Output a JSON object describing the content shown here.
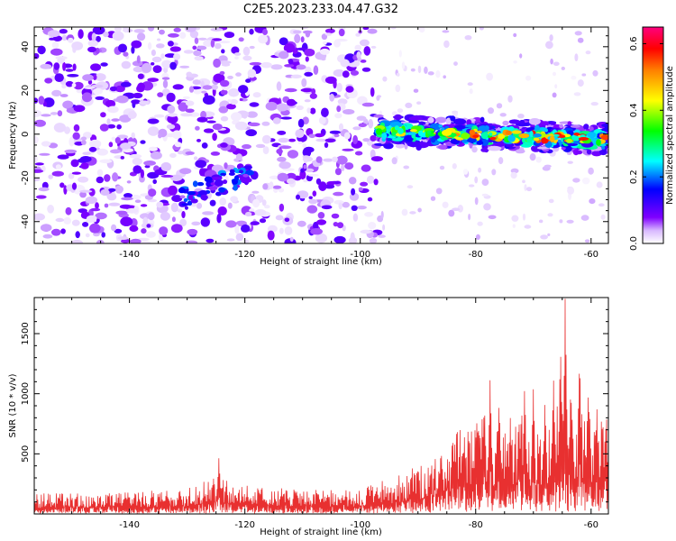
{
  "title": "C2E5.2023.233.04.47.G32",
  "chart_data": [
    {
      "type": "heatmap",
      "xlabel": "Height of straight line (km)",
      "ylabel": "Frequency (Hz)",
      "xlim": [
        -156.5,
        -57
      ],
      "ylim": [
        -50,
        49
      ],
      "xticks": [
        -140,
        -120,
        -100,
        -80,
        -60
      ],
      "yticks": [
        -40,
        -20,
        0,
        20,
        40
      ],
      "colorbar": {
        "label": "Normalized spectral amplitude",
        "range": [
          0,
          0.65
        ],
        "ticks": [
          0.0,
          0.2,
          0.4,
          0.6
        ],
        "stops": [
          "#ffffff",
          "#7f00ff",
          "#0000ff",
          "#00ffff",
          "#00ff00",
          "#ffff00",
          "#ff8000",
          "#ff0000",
          "#ff007f"
        ]
      },
      "features": [
        {
          "kind": "noise",
          "x_range": [
            -156.5,
            -97
          ],
          "y_range": [
            -50,
            49
          ],
          "max_amplitude": 0.1
        },
        {
          "kind": "tonal",
          "x_range": [
            -97,
            -57
          ],
          "freq_start": 1.5,
          "freq_end": -2.5,
          "max_amplitude": 0.63
        },
        {
          "kind": "tonal",
          "x_range": [
            -131,
            -119
          ],
          "freq_start": -30,
          "freq_end": -17,
          "max_amplitude": 0.22
        }
      ]
    },
    {
      "type": "line",
      "xlabel": "Height of straight line (km)",
      "ylabel": "SNR (10 * v/v)",
      "xlim": [
        -156.5,
        -57
      ],
      "ylim": [
        0,
        1800
      ],
      "xticks": [
        -140,
        -120,
        -100,
        -80,
        -60
      ],
      "yticks": [
        500,
        1000,
        1500
      ],
      "series": [
        {
          "color": "#e83030",
          "baseline": [
            [
              -156.5,
              110
            ],
            [
              -140,
              120
            ],
            [
              -130,
              140
            ],
            [
              -125,
              200
            ],
            [
              -120,
              160
            ],
            [
              -110,
              130
            ],
            [
              -100,
              135
            ],
            [
              -95,
              190
            ],
            [
              -90,
              260
            ],
            [
              -86,
              380
            ],
            [
              -82,
              480
            ],
            [
              -78,
              550
            ],
            [
              -75,
              480
            ],
            [
              -72,
              540
            ],
            [
              -70,
              520
            ],
            [
              -67,
              560
            ],
            [
              -65,
              600
            ],
            [
              -63,
              580
            ],
            [
              -60,
              560
            ],
            [
              -57,
              540
            ]
          ],
          "peaks": [
            [
              -124.5,
              480
            ],
            [
              -86,
              610
            ],
            [
              -84,
              730
            ],
            [
              -82,
              720
            ],
            [
              -80,
              760
            ],
            [
              -78.5,
              1000
            ],
            [
              -77.5,
              1210
            ],
            [
              -76,
              960
            ],
            [
              -74,
              880
            ],
            [
              -72.5,
              930
            ],
            [
              -71.5,
              1120
            ],
            [
              -70,
              1100
            ],
            [
              -68,
              1010
            ],
            [
              -66.5,
              1220
            ],
            [
              -65.3,
              1500
            ],
            [
              -64.5,
              1800
            ],
            [
              -63.5,
              1200
            ],
            [
              -62,
              1380
            ],
            [
              -60.5,
              1120
            ],
            [
              -59,
              930
            ],
            [
              -57.5,
              800
            ]
          ]
        }
      ]
    }
  ]
}
